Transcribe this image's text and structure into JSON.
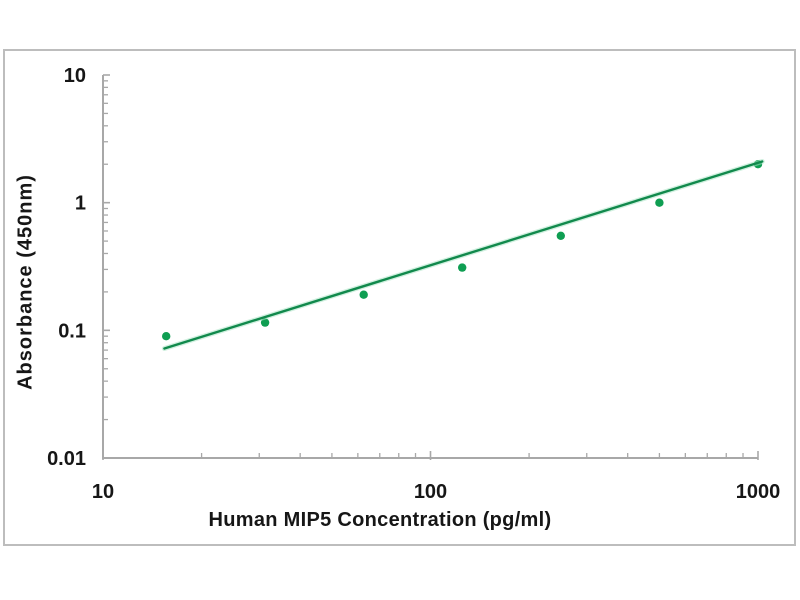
{
  "frame": {
    "border_color": "#bdbdbd",
    "background": "#ffffff",
    "axis_color": "#a8a8a8",
    "tick_color": "#a8a8a8",
    "label_color": "#161616"
  },
  "chart_data": {
    "type": "scatter",
    "title": "",
    "xlabel": "Human MIP5 Concentration (pg/ml)",
    "ylabel": "Absorbance (450nm)",
    "x_scale": "log",
    "y_scale": "log",
    "xlim": [
      10,
      1000
    ],
    "ylim": [
      0.01,
      10
    ],
    "grid": false,
    "legend": false,
    "x_ticks": [
      {
        "value": 10,
        "label": "10"
      },
      {
        "value": 100,
        "label": "100"
      },
      {
        "value": 1000,
        "label": "1000"
      }
    ],
    "y_ticks": [
      {
        "value": 10,
        "label": "10"
      },
      {
        "value": 1,
        "label": "1"
      },
      {
        "value": 0.1,
        "label": "0.1"
      },
      {
        "value": 0.01,
        "label": "0.01"
      }
    ],
    "series": [
      {
        "name": "standard-curve-points",
        "type": "scatter",
        "color": "#0f9e52",
        "points": [
          {
            "x": 15.6,
            "y": 0.09
          },
          {
            "x": 31.25,
            "y": 0.115
          },
          {
            "x": 62.5,
            "y": 0.19
          },
          {
            "x": 125,
            "y": 0.31
          },
          {
            "x": 250,
            "y": 0.55
          },
          {
            "x": 500,
            "y": 1.0
          },
          {
            "x": 1000,
            "y": 2.0
          }
        ]
      },
      {
        "name": "trend-line",
        "type": "line",
        "color": "#11894c",
        "halo_color": "#a9e3c4",
        "points": [
          {
            "x": 15.4,
            "y": 0.072
          },
          {
            "x": 1030,
            "y": 2.1
          }
        ]
      }
    ]
  }
}
